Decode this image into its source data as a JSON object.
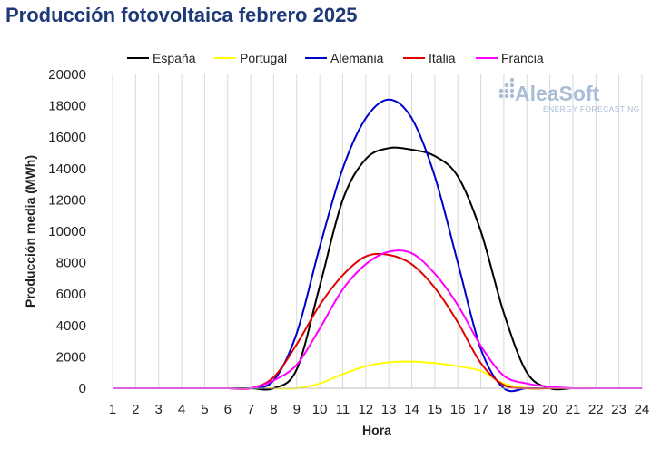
{
  "header": {
    "title": "Producción fotovoltaica febrero 2025"
  },
  "logo": {
    "name": "AleaSoft",
    "tagline": "ENERGY FORECASTING"
  },
  "chart_data": {
    "type": "line",
    "title": "Producción fotovoltaica febrero 2025",
    "xlabel": "Hora",
    "ylabel": "Producción media (MWh)",
    "x": [
      1,
      2,
      3,
      4,
      5,
      6,
      7,
      8,
      9,
      10,
      11,
      12,
      13,
      14,
      15,
      16,
      17,
      18,
      19,
      20,
      21,
      22,
      23,
      24
    ],
    "xlim": [
      1,
      24
    ],
    "ylim": [
      0,
      20000
    ],
    "yticks": [
      0,
      2000,
      4000,
      6000,
      8000,
      10000,
      12000,
      14000,
      16000,
      18000,
      20000
    ],
    "grid": "vertical",
    "legend": "top",
    "series": [
      {
        "name": "España",
        "color": "#000000",
        "values": [
          0,
          0,
          0,
          0,
          0,
          0,
          0,
          0,
          1200,
          6500,
          12000,
          14600,
          15300,
          15200,
          14800,
          13500,
          10000,
          4800,
          1000,
          0,
          0,
          0,
          0,
          0
        ]
      },
      {
        "name": "Portugal",
        "color": "#ffff00",
        "values": [
          0,
          0,
          0,
          0,
          0,
          0,
          0,
          0,
          0,
          300,
          900,
          1400,
          1650,
          1700,
          1600,
          1400,
          1100,
          300,
          0,
          0,
          0,
          0,
          0,
          0
        ]
      },
      {
        "name": "Alemania",
        "color": "#0000cc",
        "values": [
          0,
          0,
          0,
          0,
          0,
          0,
          0,
          500,
          3500,
          9000,
          14000,
          17200,
          18400,
          17200,
          13500,
          8000,
          2500,
          0,
          0,
          0,
          0,
          0,
          0,
          0
        ]
      },
      {
        "name": "Italia",
        "color": "#e00000",
        "values": [
          0,
          0,
          0,
          0,
          0,
          0,
          0,
          700,
          2800,
          5300,
          7200,
          8400,
          8500,
          7900,
          6400,
          4200,
          1600,
          200,
          0,
          0,
          0,
          0,
          0,
          0
        ]
      },
      {
        "name": "Francia",
        "color": "#ff00ff",
        "values": [
          0,
          0,
          0,
          0,
          0,
          0,
          0,
          500,
          1500,
          3800,
          6300,
          7900,
          8700,
          8600,
          7300,
          5300,
          2700,
          800,
          300,
          100,
          0,
          0,
          0,
          0
        ]
      }
    ]
  }
}
